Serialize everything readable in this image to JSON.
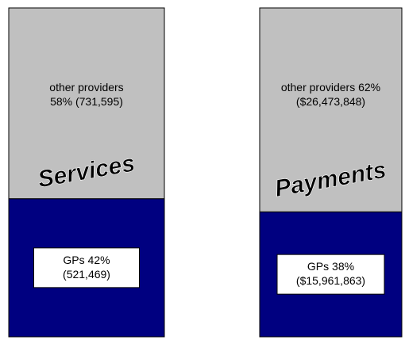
{
  "chart_data": {
    "type": "stacked_bar",
    "categories": [
      "Services",
      "Payments"
    ],
    "ylim": [
      0,
      100
    ],
    "series": [
      {
        "color": "#000080",
        "values": [
          42,
          38
        ],
        "value_labels": [
          "GPs 42%\n(521,469)",
          "GPs 38%\n($15,961,863)"
        ]
      },
      {
        "color": "#c0c0c0",
        "values": [
          58,
          62
        ],
        "value_labels": [
          "other providers\n58% (731,595)",
          "other providers 62%\n($26,473,848)"
        ]
      }
    ]
  }
}
